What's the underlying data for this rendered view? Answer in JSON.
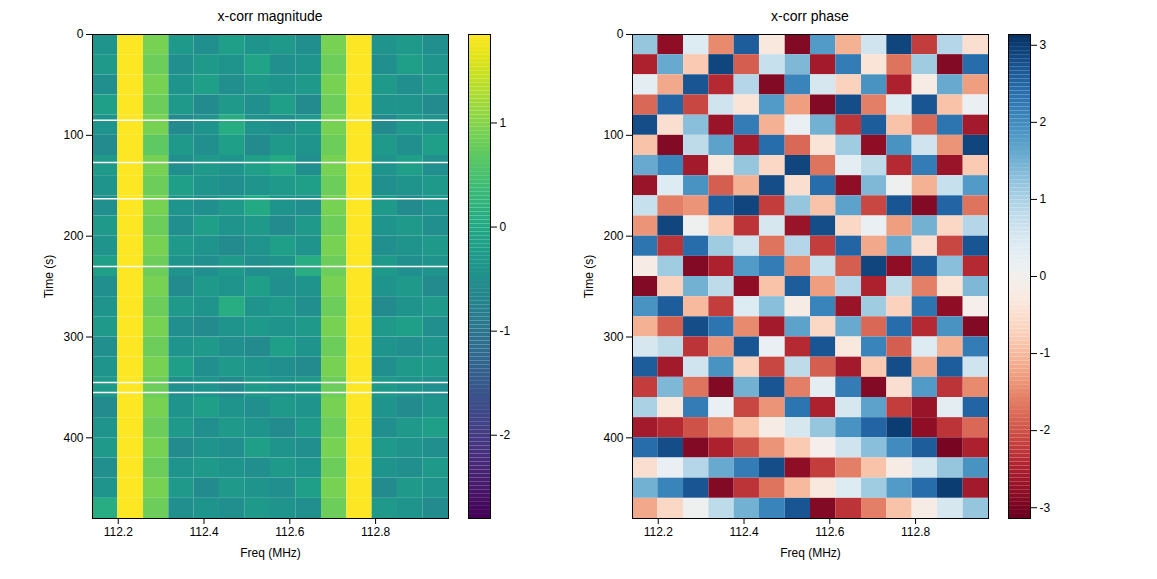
{
  "chart_data": [
    {
      "type": "heatmap",
      "title": "x-corr magnitude",
      "x_label": "Freq (MHz)",
      "y_label": "Time (s)",
      "xlim": [
        112.14,
        112.97
      ],
      "xticks": [
        112.2,
        112.4,
        112.6,
        112.8
      ],
      "ylim": [
        480,
        0
      ],
      "yticks": [
        0,
        100,
        200,
        300,
        400
      ],
      "color": "viridis",
      "colorbar": {
        "range": [
          -2.8,
          1.85
        ],
        "ticks": [
          -2,
          -1,
          0,
          1
        ]
      },
      "freq_edges": [
        112.14,
        112.199,
        112.259,
        112.318,
        112.377,
        112.436,
        112.496,
        112.555,
        112.614,
        112.674,
        112.733,
        112.792,
        112.851,
        112.911,
        112.97
      ],
      "time_edges": [
        0,
        20,
        40,
        60,
        80,
        100,
        120,
        140,
        160,
        180,
        200,
        220,
        240,
        260,
        280,
        300,
        320,
        340,
        360,
        380,
        400,
        420,
        440,
        460,
        480
      ],
      "masked_times": [
        85,
        127,
        163,
        230,
        345,
        355
      ],
      "values": [
        [
          -0.4,
          1.85,
          0.9,
          -0.3,
          -0.5,
          -0.2,
          -0.4,
          -0.3,
          -0.5,
          0.9,
          1.85,
          -0.4,
          -0.3,
          -0.5
        ],
        [
          -0.3,
          1.85,
          0.8,
          -0.5,
          -0.3,
          -0.4,
          -0.1,
          -0.5,
          -0.4,
          0.8,
          1.85,
          -0.5,
          -0.2,
          -0.4
        ],
        [
          -0.5,
          1.85,
          0.9,
          -0.4,
          -0.2,
          -0.5,
          -0.3,
          -0.4,
          -0.3,
          0.9,
          1.85,
          -0.3,
          -0.5,
          -0.3
        ],
        [
          -0.2,
          1.85,
          0.8,
          -0.3,
          -0.6,
          -0.3,
          -0.5,
          -0.2,
          -0.6,
          0.8,
          1.85,
          -0.4,
          -0.4,
          -0.6
        ],
        [
          -0.4,
          1.85,
          0.9,
          -0.6,
          -0.4,
          0.1,
          -0.4,
          -0.5,
          -0.3,
          0.9,
          1.85,
          -0.6,
          -0.3,
          -0.4
        ],
        [
          -0.6,
          1.85,
          0.7,
          -0.3,
          -0.5,
          -0.2,
          -0.6,
          -0.3,
          -0.4,
          0.8,
          1.85,
          -0.3,
          -0.5,
          -0.2
        ],
        [
          -0.3,
          1.85,
          0.9,
          -0.5,
          -0.3,
          -0.4,
          -0.2,
          0.0,
          -0.5,
          0.9,
          1.85,
          -0.4,
          -0.2,
          -0.5
        ],
        [
          -0.4,
          1.85,
          0.8,
          -0.2,
          -0.4,
          -0.5,
          -0.4,
          -0.3,
          -0.2,
          0.8,
          1.85,
          -0.5,
          -0.4,
          -0.3
        ],
        [
          -0.5,
          1.85,
          0.9,
          -0.4,
          -0.5,
          -0.3,
          0.0,
          -0.4,
          -0.5,
          0.9,
          1.85,
          -0.3,
          -0.6,
          -0.4
        ],
        [
          -0.3,
          1.85,
          0.8,
          -0.5,
          -0.2,
          -0.4,
          -0.3,
          -0.6,
          -0.3,
          0.8,
          1.85,
          -0.4,
          -0.3,
          -0.5
        ],
        [
          -0.4,
          1.85,
          0.9,
          -0.3,
          -0.4,
          -0.6,
          -0.4,
          -0.2,
          -0.4,
          0.9,
          1.85,
          -0.5,
          -0.4,
          -0.3
        ],
        [
          -0.2,
          1.85,
          0.8,
          -0.4,
          -0.5,
          -0.3,
          -0.5,
          -0.4,
          0.1,
          0.8,
          1.85,
          -0.3,
          -0.5,
          -0.4
        ],
        [
          -0.5,
          1.85,
          0.9,
          -0.6,
          -0.3,
          -0.4,
          -0.2,
          -0.5,
          -0.4,
          0.9,
          1.85,
          -0.4,
          -0.3,
          -0.6
        ],
        [
          -0.4,
          1.85,
          0.8,
          -0.3,
          -0.4,
          0.1,
          -0.4,
          -0.3,
          -0.5,
          0.8,
          1.85,
          -0.6,
          -0.4,
          -0.3
        ],
        [
          -0.3,
          1.85,
          0.9,
          -0.5,
          -0.6,
          -0.4,
          -0.3,
          -0.4,
          -0.3,
          0.9,
          1.85,
          -0.3,
          -0.2,
          -0.5
        ],
        [
          -0.5,
          1.85,
          0.8,
          -0.4,
          -0.3,
          -0.5,
          -0.6,
          -0.2,
          -0.4,
          0.8,
          1.85,
          -0.4,
          -0.5,
          -0.4
        ],
        [
          -0.4,
          1.85,
          0.9,
          -0.2,
          -0.5,
          -0.3,
          -0.4,
          -0.5,
          -0.6,
          0.9,
          1.85,
          -0.5,
          -0.3,
          -0.3
        ],
        [
          -0.3,
          1.85,
          0.8,
          -0.5,
          -0.4,
          -0.6,
          -0.3,
          -0.4,
          -0.3,
          0.8,
          1.85,
          -0.3,
          -0.4,
          -0.5
        ],
        [
          -0.6,
          1.85,
          0.9,
          -0.4,
          -0.2,
          -0.4,
          -0.5,
          -0.3,
          -0.4,
          0.9,
          1.85,
          -0.4,
          -0.6,
          -0.4
        ],
        [
          -0.4,
          1.85,
          0.8,
          -0.3,
          -0.5,
          -0.3,
          -0.4,
          -0.6,
          -0.3,
          0.8,
          1.85,
          -0.5,
          -0.3,
          -0.2
        ],
        [
          -0.3,
          1.85,
          0.9,
          -0.6,
          -0.4,
          -0.5,
          -0.2,
          -0.4,
          -0.5,
          0.9,
          1.85,
          -0.3,
          -0.4,
          -0.5
        ],
        [
          -0.5,
          1.85,
          0.8,
          -0.4,
          -0.3,
          -0.4,
          -0.5,
          -0.3,
          -0.4,
          0.8,
          1.85,
          -0.4,
          -0.5,
          -0.3
        ],
        [
          -0.4,
          1.85,
          0.9,
          -0.3,
          -0.6,
          -0.3,
          -0.4,
          -0.5,
          -0.2,
          0.9,
          1.85,
          -0.6,
          -0.3,
          -0.4
        ],
        [
          0.1,
          1.85,
          0.8,
          -0.5,
          -0.4,
          -0.5,
          -0.3,
          -0.4,
          -0.5,
          0.8,
          1.85,
          -0.3,
          -0.4,
          -0.6
        ]
      ]
    },
    {
      "type": "heatmap",
      "title": "x-corr phase",
      "x_label": "Freq (MHz)",
      "y_label": "Time (s)",
      "xlim": [
        112.14,
        112.97
      ],
      "xticks": [
        112.2,
        112.4,
        112.6,
        112.8
      ],
      "ylim": [
        480,
        0
      ],
      "yticks": [
        0,
        100,
        200,
        300,
        400
      ],
      "color": "RdBu",
      "colorbar": {
        "range": [
          -3.14,
          3.14
        ],
        "ticks": [
          -3,
          -2,
          -1,
          0,
          1,
          2,
          3
        ]
      },
      "freq_edges": [
        112.14,
        112.199,
        112.259,
        112.318,
        112.377,
        112.436,
        112.496,
        112.555,
        112.614,
        112.674,
        112.733,
        112.792,
        112.851,
        112.911,
        112.97
      ],
      "time_edges": [
        0,
        20,
        40,
        60,
        80,
        100,
        120,
        140,
        160,
        180,
        200,
        220,
        240,
        260,
        280,
        300,
        320,
        340,
        360,
        380,
        400,
        420,
        440,
        460,
        480
      ],
      "values": [
        [
          1.2,
          -2.8,
          0.4,
          -1.5,
          2.6,
          -0.3,
          -2.9,
          1.8,
          -1.1,
          0.6,
          2.9,
          -2.2,
          0.9,
          -0.5
        ],
        [
          -2.5,
          1.6,
          -0.8,
          2.9,
          -1.9,
          0.7,
          1.4,
          -2.6,
          2.2,
          -0.4,
          -1.7,
          1.1,
          -2.9,
          2.4
        ],
        [
          0.3,
          -1.2,
          2.7,
          -2.4,
          0.9,
          -2.9,
          2.1,
          0.5,
          -0.7,
          1.9,
          -2.5,
          -0.2,
          1.6,
          -1.3
        ],
        [
          -1.8,
          2.5,
          -2.1,
          0.6,
          -0.4,
          1.8,
          -1.3,
          -2.9,
          2.8,
          -1.6,
          0.4,
          2.7,
          -0.9,
          0.2
        ],
        [
          2.8,
          -0.5,
          1.3,
          -2.7,
          2.2,
          -1.1,
          0.2,
          1.5,
          -2.3,
          2.6,
          -0.9,
          -1.8,
          2.3,
          -2.6
        ],
        [
          -0.9,
          -2.9,
          0.8,
          1.7,
          -2.6,
          2.4,
          -1.8,
          -0.4,
          1.1,
          -2.8,
          1.9,
          0.6,
          -1.4,
          2.9
        ],
        [
          1.6,
          2.1,
          -2.6,
          -0.3,
          1.2,
          -0.6,
          2.9,
          -1.7,
          0.3,
          0.8,
          -2.4,
          2.2,
          -2.7,
          -0.8
        ],
        [
          -2.7,
          0.4,
          1.9,
          -1.9,
          -1.1,
          2.8,
          -0.5,
          2.4,
          -2.8,
          1.4,
          0.1,
          -1.1,
          0.7,
          1.8
        ],
        [
          0.7,
          -1.6,
          -1.4,
          2.6,
          2.9,
          -2.2,
          1.2,
          -0.9,
          1.7,
          -2.1,
          2.7,
          -2.9,
          2.5,
          -1.7
        ],
        [
          -1.4,
          2.9,
          0.1,
          -0.8,
          -2.3,
          0.5,
          -2.7,
          2.8,
          -0.6,
          0.2,
          -1.3,
          1.5,
          -0.6,
          0.9
        ],
        [
          2.3,
          -2.3,
          2.4,
          1.1,
          0.6,
          -1.7,
          0.9,
          -2.2,
          2.5,
          -1.2,
          1.6,
          -0.5,
          -2.1,
          2.7
        ],
        [
          -0.2,
          1.1,
          -2.9,
          -2.5,
          1.8,
          2.2,
          -1.5,
          0.7,
          -1.9,
          2.9,
          -2.8,
          2.6,
          1.3,
          -2.4
        ],
        [
          -2.9,
          -0.7,
          1.5,
          0.8,
          -2.8,
          -0.9,
          2.6,
          -1.3,
          0.9,
          -2.5,
          0.8,
          -1.6,
          -0.4,
          1.4
        ],
        [
          1.9,
          2.6,
          -1.0,
          -2.2,
          0.4,
          1.3,
          -0.2,
          2.1,
          -2.7,
          1.1,
          -0.7,
          2.3,
          -2.8,
          -0.1
        ],
        [
          -1.1,
          -1.9,
          2.8,
          2.3,
          -1.5,
          -2.6,
          1.7,
          -0.6,
          1.6,
          -1.8,
          2.4,
          -2.4,
          1.9,
          -2.9
        ],
        [
          0.5,
          0.8,
          -2.3,
          -1.4,
          2.7,
          0.2,
          -2.4,
          2.7,
          -0.3,
          2.1,
          -1.9,
          0.4,
          -1.1,
          2.2
        ],
        [
          2.6,
          -2.6,
          0.6,
          1.9,
          -0.7,
          -2.1,
          0.8,
          -1.9,
          -2.6,
          -0.8,
          2.8,
          -1.2,
          2.6,
          0.6
        ],
        [
          -2.2,
          1.4,
          -1.7,
          -2.9,
          1.5,
          2.7,
          -1.6,
          0.3,
          2.2,
          -2.9,
          -0.5,
          1.8,
          -2.3,
          -1.5
        ],
        [
          1.0,
          -0.3,
          2.2,
          0.2,
          -2.1,
          -1.4,
          2.3,
          -2.5,
          0.5,
          1.7,
          -2.2,
          -2.7,
          0.3,
          2.5
        ],
        [
          -2.6,
          -2.4,
          -2.0,
          -1.5,
          -0.9,
          -0.2,
          0.5,
          1.2,
          1.9,
          2.5,
          3.0,
          -2.8,
          -2.3,
          -1.8
        ],
        [
          2.4,
          2.8,
          -2.9,
          -2.5,
          -2.0,
          -1.4,
          -0.8,
          -0.1,
          0.6,
          1.3,
          2.0,
          2.6,
          -3.0,
          -2.5
        ],
        [
          -0.5,
          0.2,
          0.9,
          1.6,
          2.2,
          2.8,
          -2.8,
          -2.2,
          -1.6,
          -0.9,
          -0.2,
          0.5,
          1.2,
          1.9
        ],
        [
          1.5,
          2.1,
          2.7,
          -2.9,
          -2.3,
          -1.7,
          -1.0,
          -0.3,
          0.4,
          1.1,
          1.8,
          2.4,
          3.0,
          -2.6
        ],
        [
          -1.2,
          -0.6,
          0.1,
          0.8,
          1.5,
          2.1,
          2.7,
          -2.9,
          -2.3,
          -1.6,
          -0.9,
          -0.2,
          0.5,
          1.2
        ]
      ]
    }
  ]
}
